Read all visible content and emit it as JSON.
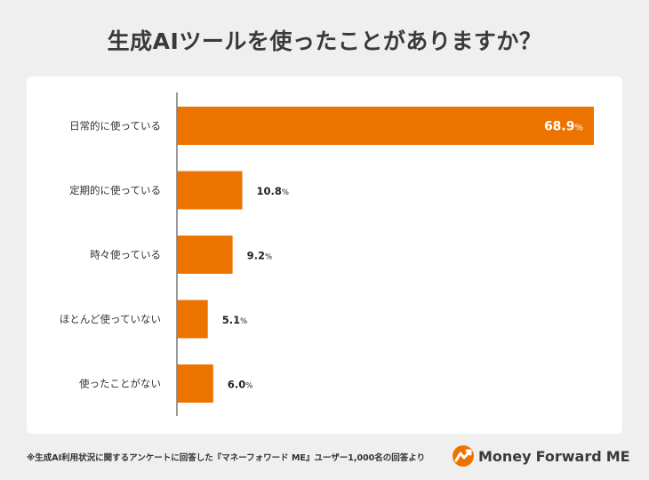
{
  "title": "生成AIツールを使ったことがありますか？",
  "footnote": "※生成AI利用状況に関するアンケートに回答した『マネーフォワード ME』ユーザー1,000名の回答より",
  "logo": {
    "part1": "Money",
    "part2": "Forward",
    "part3": "ME",
    "icon": "money-forward-logo-icon"
  },
  "colors": {
    "bar": "#ed7300",
    "axis": "#333333",
    "background": "#efefef",
    "panel": "#ffffff"
  },
  "chart_data": {
    "type": "bar",
    "orientation": "horizontal",
    "categories": [
      "日常的に使っている",
      "定期的に使っている",
      "時々使っている",
      "ほとんど使っていない",
      "使ったことがない"
    ],
    "values": [
      68.9,
      10.8,
      9.2,
      5.1,
      6.0
    ],
    "labels": [
      "68.9",
      "10.8",
      "9.2",
      "5.1",
      "6.0"
    ],
    "unit": "%",
    "xlim": [
      0,
      70
    ],
    "grid": false,
    "legend": "none"
  }
}
